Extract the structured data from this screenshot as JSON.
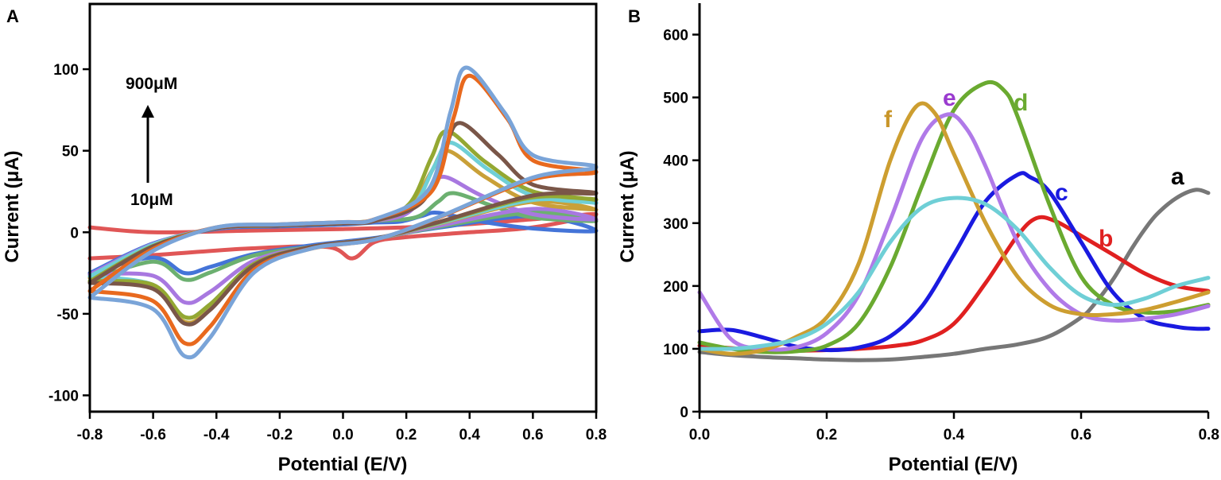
{
  "chart_data": [
    {
      "panel": "A",
      "type": "line",
      "xlabel": "Potential (E/V)",
      "ylabel": "Current (μA)",
      "xlim": [
        -0.8,
        0.8
      ],
      "ylim": [
        -110,
        140
      ],
      "x_ticks": [
        "-0.8",
        "-0.6",
        "-0.4",
        "-0.2",
        "0.0",
        "0.2",
        "0.4",
        "0.6",
        "0.8"
      ],
      "y_ticks": [
        "-100",
        "-50",
        "0",
        "50",
        "100"
      ],
      "annotations": [
        {
          "text": "900μM"
        },
        {
          "text": "10μM"
        }
      ],
      "series": [
        {
          "color": "#e05656",
          "ox": 0.02,
          "oy": 0,
          "ot": 0,
          "rx": 0.02,
          "ry": -16,
          "tail": 11,
          "start": 3,
          "wedge": 0
        },
        {
          "color": "#4474d8",
          "ox": 0.3,
          "oy": 12,
          "ot": 1,
          "rx": -0.5,
          "ry": -25,
          "tail": 18,
          "start": -25,
          "wedge": 0.5
        },
        {
          "color": "#6cb070",
          "ox": 0.35,
          "oy": 24,
          "ot": 7,
          "rx": -0.5,
          "ry": -29,
          "tail": 22,
          "start": -30,
          "wedge": 1
        },
        {
          "color": "#a878e0",
          "ox": 0.32,
          "oy": 34,
          "ot": 8,
          "rx": -0.5,
          "ry": -43,
          "tail": 26,
          "start": -26,
          "wedge": 1
        },
        {
          "color": "#c9a038",
          "ox": 0.33,
          "oy": 50,
          "ot": 14,
          "rx": -0.5,
          "ry": -55,
          "tail": 34,
          "start": -28,
          "wedge": 1
        },
        {
          "color": "#6fcfd6",
          "ox": 0.34,
          "oy": 55,
          "ot": 18,
          "rx": -0.5,
          "ry": -52,
          "tail": 36,
          "start": -27,
          "wedge": 1
        },
        {
          "color": "#94a832",
          "ox": 0.33,
          "oy": 62,
          "ot": 20,
          "rx": -0.5,
          "ry": -52,
          "tail": 39,
          "start": -30,
          "wedge": 1
        },
        {
          "color": "#7a5648",
          "ox": 0.37,
          "oy": 67,
          "ot": 24,
          "rx": -0.5,
          "ry": -56,
          "tail": 41,
          "start": -31,
          "wedge": 1
        },
        {
          "color": "#e8691e",
          "ox": 0.4,
          "oy": 96,
          "ot": 37,
          "rx": -0.5,
          "ry": -68,
          "tail": 59,
          "start": -36,
          "wedge": 1.5
        },
        {
          "color": "#7aa4d8",
          "ox": 0.39,
          "oy": 101,
          "ot": 40,
          "rx": -0.5,
          "ry": -76,
          "tail": 61,
          "start": -40,
          "wedge": 1.5
        }
      ]
    },
    {
      "panel": "B",
      "type": "line",
      "xlabel": "Potential (E/V)",
      "ylabel": "Current (μA)",
      "xlim": [
        0.0,
        0.8
      ],
      "ylim": [
        0,
        650
      ],
      "x_ticks": [
        "0.0",
        "0.2",
        "0.4",
        "0.6",
        "0.8"
      ],
      "y_ticks": [
        "0",
        "100",
        "200",
        "300",
        "400",
        "500",
        "600"
      ],
      "series": [
        {
          "name": "a",
          "color": "#777777",
          "x": [
            0,
            0.05,
            0.1,
            0.15,
            0.2,
            0.25,
            0.3,
            0.35,
            0.4,
            0.45,
            0.5,
            0.55,
            0.6,
            0.62,
            0.65,
            0.68,
            0.7,
            0.72,
            0.75,
            0.78,
            0.8
          ],
          "y": [
            95,
            90,
            87,
            85,
            83,
            82,
            83,
            87,
            92,
            100,
            107,
            120,
            150,
            170,
            210,
            260,
            290,
            315,
            340,
            353,
            348
          ]
        },
        {
          "name": "b",
          "color": "#e02020",
          "x": [
            0,
            0.05,
            0.1,
            0.15,
            0.2,
            0.25,
            0.3,
            0.35,
            0.4,
            0.45,
            0.5,
            0.53,
            0.56,
            0.6,
            0.65,
            0.7,
            0.75,
            0.8
          ],
          "y": [
            105,
            101,
            98,
            97,
            98,
            100,
            104,
            113,
            140,
            205,
            280,
            308,
            303,
            280,
            250,
            220,
            200,
            192
          ]
        },
        {
          "name": "c",
          "color": "#1a1ae0",
          "x": [
            0,
            0.05,
            0.1,
            0.15,
            0.2,
            0.25,
            0.3,
            0.35,
            0.4,
            0.45,
            0.5,
            0.52,
            0.55,
            0.6,
            0.65,
            0.7,
            0.75,
            0.78,
            0.8
          ],
          "y": [
            128,
            130,
            118,
            104,
            98,
            102,
            120,
            168,
            250,
            335,
            377,
            373,
            350,
            270,
            190,
            148,
            135,
            132,
            132
          ]
        },
        {
          "name": "d",
          "color": "#6aaa30",
          "x": [
            0,
            0.05,
            0.1,
            0.15,
            0.2,
            0.25,
            0.3,
            0.35,
            0.4,
            0.45,
            0.48,
            0.5,
            0.55,
            0.6,
            0.65,
            0.7,
            0.75,
            0.8
          ],
          "y": [
            110,
            100,
            95,
            96,
            105,
            140,
            230,
            360,
            480,
            523,
            510,
            470,
            330,
            215,
            170,
            158,
            160,
            170
          ]
        },
        {
          "name": "e",
          "color": "#b07ae8",
          "x": [
            0,
            0.05,
            0.1,
            0.15,
            0.2,
            0.25,
            0.3,
            0.35,
            0.39,
            0.42,
            0.45,
            0.5,
            0.55,
            0.6,
            0.65,
            0.7,
            0.75,
            0.8
          ],
          "y": [
            190,
            115,
            100,
            102,
            125,
            185,
            305,
            435,
            473,
            450,
            390,
            270,
            195,
            155,
            145,
            148,
            155,
            168
          ]
        },
        {
          "name": "f",
          "color": "#cd9e30",
          "x": [
            0,
            0.05,
            0.1,
            0.15,
            0.2,
            0.25,
            0.3,
            0.34,
            0.37,
            0.4,
            0.45,
            0.5,
            0.55,
            0.6,
            0.65,
            0.7,
            0.75,
            0.8
          ],
          "y": [
            100,
            92,
            98,
            118,
            150,
            235,
            400,
            485,
            475,
            410,
            300,
            215,
            170,
            155,
            155,
            162,
            175,
            190
          ]
        },
        {
          "name": "",
          "color": "#6fcfd6",
          "x": [
            0,
            0.05,
            0.1,
            0.15,
            0.2,
            0.25,
            0.3,
            0.35,
            0.4,
            0.45,
            0.5,
            0.55,
            0.6,
            0.65,
            0.7,
            0.75,
            0.8
          ],
          "y": [
            100,
            100,
            105,
            115,
            140,
            190,
            270,
            325,
            340,
            330,
            290,
            230,
            185,
            170,
            180,
            200,
            213
          ]
        }
      ]
    }
  ],
  "labels": {
    "panel_a": "A",
    "panel_b": "B",
    "annot_top": "900μM",
    "annot_bottom": "10μM",
    "curve_a": "a",
    "curve_b": "b",
    "curve_c": "c",
    "curve_d": "d",
    "curve_e": "e",
    "curve_f": "f"
  }
}
